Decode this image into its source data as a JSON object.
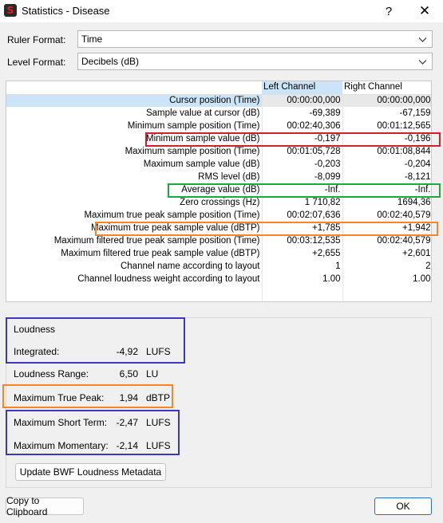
{
  "window": {
    "title": "Statistics - Disease",
    "help_label": "?",
    "close_label": "✕",
    "app_icon": "sound-forge-logo"
  },
  "ruler_format": {
    "label": "Ruler Format:",
    "value": "Time"
  },
  "level_format": {
    "label": "Level Format:",
    "value": "Decibels (dB)"
  },
  "table": {
    "columns": [
      "",
      "Left Channel",
      "Right Channel"
    ],
    "rows": [
      {
        "label": "Cursor position (Time)",
        "left": "00:00:00,000",
        "right": "00:00:00,000"
      },
      {
        "label": "Sample value at cursor (dB)",
        "left": "-69,389",
        "right": "-67,159"
      },
      {
        "label": "Minimum sample position (Time)",
        "left": "00:02:40,306",
        "right": "00:01:12,565"
      },
      {
        "label": "Minimum sample value (dB)",
        "left": "-0,197",
        "right": "-0,196"
      },
      {
        "label": "Maximum sample position (Time)",
        "left": "00:01:05,728",
        "right": "00:01:08,844"
      },
      {
        "label": "Maximum sample value (dB)",
        "left": "-0,203",
        "right": "-0,204"
      },
      {
        "label": "RMS level (dB)",
        "left": "-8,099",
        "right": "-8,121"
      },
      {
        "label": "Average value (dB)",
        "left": "-Inf.",
        "right": "-Inf."
      },
      {
        "label": "Zero crossings (Hz)",
        "left": "1 710,82",
        "right": "1694,36"
      },
      {
        "label": "Maximum true peak sample position (Time)",
        "left": "00:02:07,636",
        "right": "00:02:40,579"
      },
      {
        "label": "Maximum true peak sample value (dBTP)",
        "left": "+1,785",
        "right": "+1,942"
      },
      {
        "label": "Maximum filtered true peak sample position (Time)",
        "left": "00:03:12,535",
        "right": "00:02:40,579"
      },
      {
        "label": "Maximum filtered true peak sample value (dBTP)",
        "left": "+2,655",
        "right": "+2,601"
      },
      {
        "label": "Channel name according to layout",
        "left": "1",
        "right": "2"
      },
      {
        "label": "Channel loudness weight according to layout",
        "left": "1.00",
        "right": "1.00"
      }
    ]
  },
  "loudness": {
    "title": "Loudness",
    "integrated": {
      "label": "Integrated:",
      "value": "-4,92",
      "unit": "LUFS"
    },
    "range": {
      "label": "Loudness Range:",
      "value": "6,50",
      "unit": "LU"
    },
    "true_peak": {
      "label": "Maximum True Peak:",
      "value": "1,94",
      "unit": "dBTP"
    },
    "short_term": {
      "label": "Maximum Short Term:",
      "value": "-2,47",
      "unit": "LUFS"
    },
    "momentary": {
      "label": "Maximum Momentary:",
      "value": "-2,14",
      "unit": "LUFS"
    },
    "update_button": "Update BWF Loudness Metadata"
  },
  "buttons": {
    "copy": "Copy to Clipboard",
    "ok": "OK"
  },
  "highlight_colors": {
    "red": "#d0202a",
    "green": "#22a640",
    "orange": "#f0872a",
    "blue": "#3a3ab8"
  }
}
